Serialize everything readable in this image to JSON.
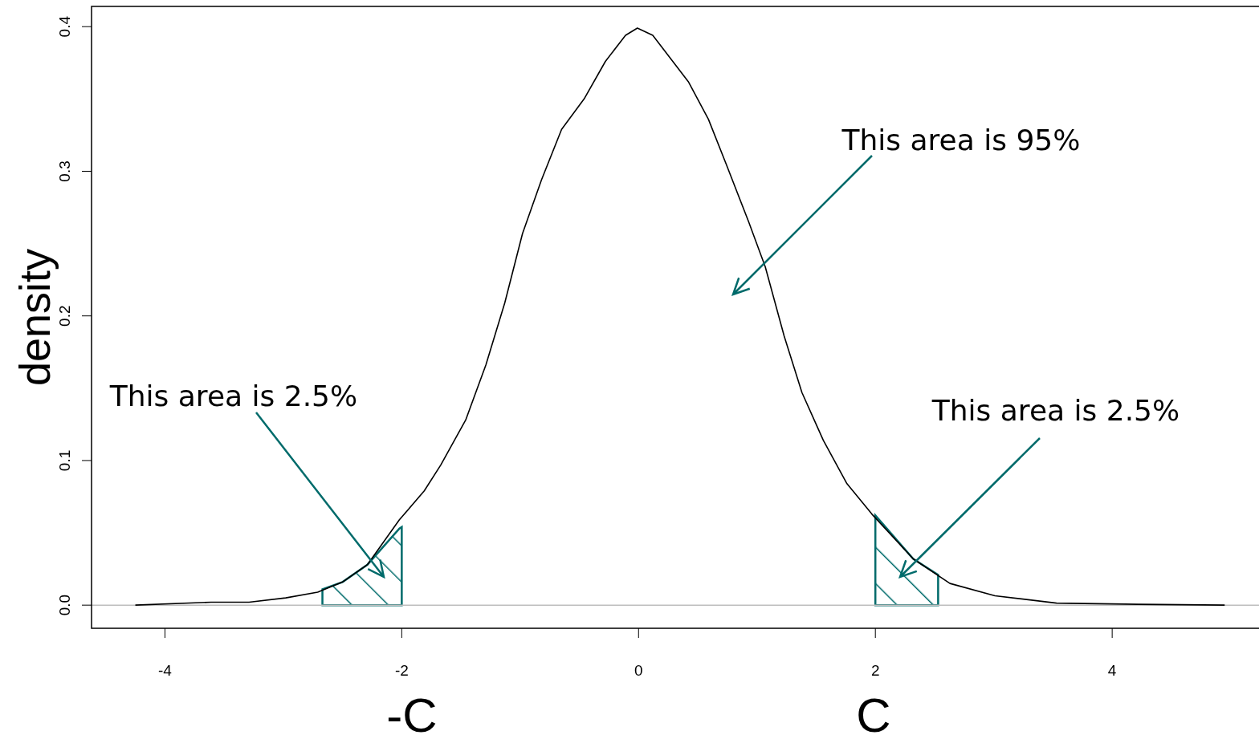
{
  "chart_data": {
    "type": "line",
    "ylabel": "density",
    "xlim": [
      -4.62,
      5.24
    ],
    "ylim": [
      -0.016,
      0.414
    ],
    "xticks": [
      -4,
      -2,
      0,
      2,
      4
    ],
    "yticks": [
      {
        "value": 0,
        "label": "0.0"
      },
      {
        "value": 0.1,
        "label": "0.1"
      },
      {
        "value": 0.2,
        "label": "0.2"
      },
      {
        "value": 0.3,
        "label": "0.3"
      },
      {
        "value": 0.4,
        "label": "0.4"
      }
    ],
    "grid": false,
    "marker": "none",
    "line_style": "solid",
    "series": [
      {
        "type": "area",
        "color": "#006b6b",
        "x": [
          -2.67,
          -2.5,
          -2.29,
          -2.02,
          -2.0
        ],
        "values": [
          0.011,
          0.016,
          0.028,
          0.053,
          0.054
        ]
      },
      {
        "type": "area",
        "color": "#006b6b",
        "x": [
          2.0,
          2.32,
          2.53
        ],
        "values": [
          0.062,
          0.032,
          0.021
        ]
      },
      {
        "color": "#000000",
        "x": [
          -4.25,
          -3.61,
          -3.29,
          -2.98,
          -2.71,
          -2.5,
          -2.29,
          -2.02,
          -1.81,
          -1.67,
          -1.46,
          -1.29,
          -1.13,
          -0.98,
          -0.82,
          -0.65,
          -0.46,
          -0.28,
          -0.11,
          -0.01,
          0.12,
          0.42,
          0.59,
          0.74,
          0.93,
          1.07,
          1.23,
          1.38,
          1.56,
          1.76,
          1.97,
          2.32,
          2.63,
          3.01,
          3.53,
          4.22,
          4.95
        ],
        "values": [
          0,
          0.002,
          0.002,
          0.005,
          0.009,
          0.016,
          0.028,
          0.059,
          0.079,
          0.097,
          0.128,
          0.166,
          0.209,
          0.257,
          0.294,
          0.329,
          0.35,
          0.376,
          0.394,
          0.399,
          0.394,
          0.362,
          0.336,
          0.305,
          0.265,
          0.234,
          0.186,
          0.147,
          0.114,
          0.084,
          0.063,
          0.032,
          0.015,
          0.0065,
          0.0014,
          0.0006,
          0
        ]
      }
    ],
    "ref_lines": [
      {
        "axis": "y",
        "value": 0,
        "color": "#bebebe"
      }
    ],
    "annotations": [
      "This area is 95%",
      "This area is 2.5%",
      "This area is 2.5%",
      "-C",
      "C"
    ]
  }
}
